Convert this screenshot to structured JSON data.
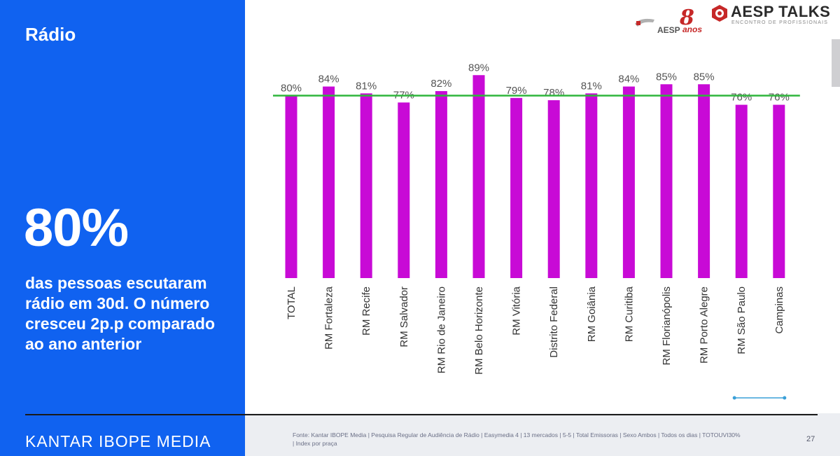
{
  "slide": {
    "title": "Rádio",
    "big_stat": "80%",
    "stat_description": "das pessoas escutaram rádio em 30d. O número cresceu 2p.p comparado ao ano anterior",
    "logo_text": "KANTAR IBOPE MEDIA",
    "footnote": "Fonte: Kantar IBOPE Media | Pesquisa Regular de Audiência de Rádio | Easymedia 4 | 13 mercados | 5-5 | Total Emissoras | Sexo Ambos | Todos os dias | TOTOUVI30% | Index por praça",
    "page_number": "27"
  },
  "brand": {
    "aesp": "AESP",
    "anos_number": "8",
    "anos_word": "anos",
    "title": "AESP TALKS",
    "subtitle": "ENCONTRO DE PROFISSIONAIS"
  },
  "colors": {
    "panel_blue": "#1062f0",
    "bar": "#c80ad6",
    "reference_line": "#2fb53c",
    "accent_line": "#3aa0d8"
  },
  "chart_data": {
    "type": "bar",
    "categories": [
      "TOTAL",
      "RM Fortaleza",
      "RM Recife",
      "RM Salvador",
      "RM Rio de Janeiro",
      "RM Belo Horizonte",
      "RM Vitória",
      "Distrito Federal",
      "RM Goiânia",
      "RM Curitiba",
      "RM Florianópolis",
      "RM Porto Alegre",
      "RM São Paulo",
      "Campinas"
    ],
    "values": [
      80,
      84,
      81,
      77,
      82,
      89,
      79,
      78,
      81,
      84,
      85,
      85,
      76,
      76
    ],
    "value_labels": [
      "80%",
      "84%",
      "81%",
      "77%",
      "82%",
      "89%",
      "79%",
      "78%",
      "81%",
      "84%",
      "85%",
      "85%",
      "76%",
      "76%"
    ],
    "reference_line": 80,
    "title": "",
    "xlabel": "",
    "ylabel": "",
    "ylim": [
      0,
      90
    ],
    "grid": false,
    "legend": false
  }
}
